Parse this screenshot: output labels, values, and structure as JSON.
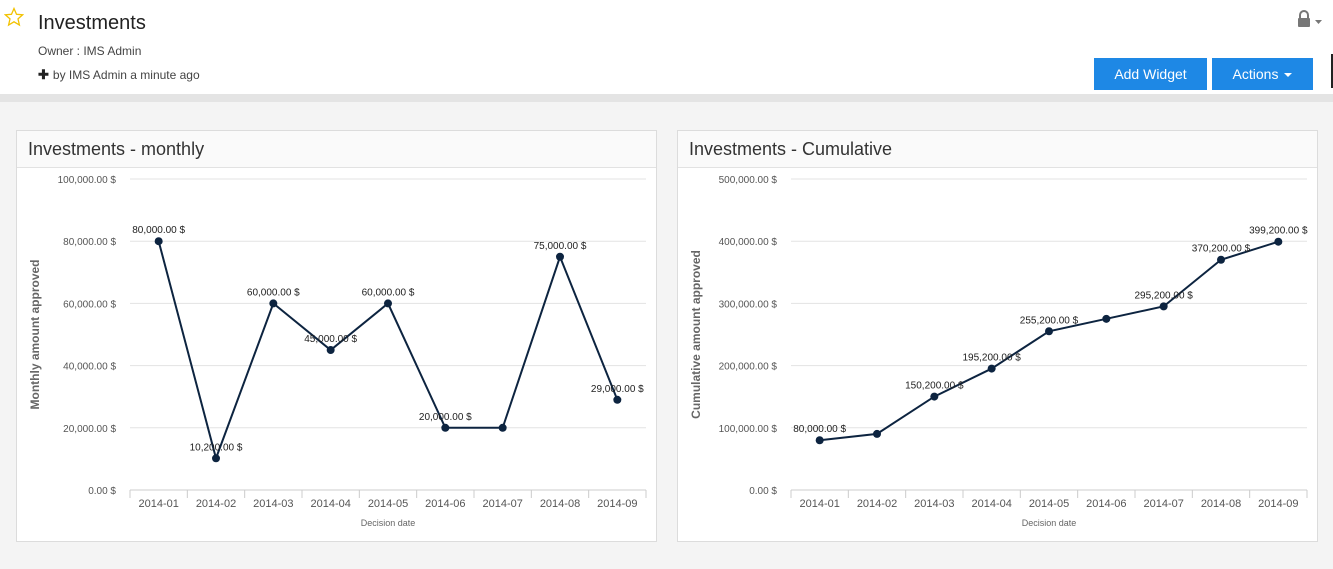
{
  "header": {
    "title": "Investments",
    "owner": "Owner : IMS Admin",
    "activity": "by IMS Admin a minute ago",
    "add_widget_label": "Add Widget",
    "actions_label": "Actions"
  },
  "colors": {
    "accent": "#1e88e5",
    "line": "#0d2440",
    "star": "#f2c200"
  },
  "chart_data": [
    {
      "type": "line",
      "title": "Investments - monthly",
      "xlabel": "Decision date",
      "ylabel": "Monthly amount approved",
      "categories": [
        "2014-01",
        "2014-02",
        "2014-03",
        "2014-04",
        "2014-05",
        "2014-06",
        "2014-07",
        "2014-08",
        "2014-09"
      ],
      "values": [
        80000,
        10200,
        60000,
        45000,
        60000,
        20000,
        20000,
        75000,
        29000
      ],
      "point_labels": [
        "80,000.00 $",
        "10,200.00 $",
        "60,000.00 $",
        "45,000.00 $",
        "60,000.00 $",
        "20,000.00 $",
        "",
        "75,000.00 $",
        "29,000.00 $"
      ],
      "yticks": [
        0,
        20000,
        40000,
        60000,
        80000,
        100000
      ],
      "ytick_labels": [
        "0.00 $",
        "20,000.00 $",
        "40,000.00 $",
        "60,000.00 $",
        "80,000.00 $",
        "100,000.00 $"
      ],
      "ylim": [
        0,
        100000
      ],
      "grid": true
    },
    {
      "type": "line",
      "title": "Investments - Cumulative",
      "xlabel": "Decision date",
      "ylabel": "Cumulative amount approved",
      "categories": [
        "2014-01",
        "2014-02",
        "2014-03",
        "2014-04",
        "2014-05",
        "2014-06",
        "2014-07",
        "2014-08",
        "2014-09"
      ],
      "values": [
        80000,
        90200,
        150200,
        195200,
        255200,
        275200,
        295200,
        370200,
        399200
      ],
      "point_labels": [
        "80,000.00 $",
        "",
        "150,200.00 $",
        "195,200.00 $",
        "255,200.00 $",
        "",
        "295,200.00 $",
        "370,200.00 $",
        "399,200.00 $"
      ],
      "yticks": [
        0,
        100000,
        200000,
        300000,
        400000,
        500000
      ],
      "ytick_labels": [
        "0.00 $",
        "100,000.00 $",
        "200,000.00 $",
        "300,000.00 $",
        "400,000.00 $",
        "500,000.00 $"
      ],
      "ylim": [
        0,
        500000
      ],
      "grid": true
    }
  ]
}
